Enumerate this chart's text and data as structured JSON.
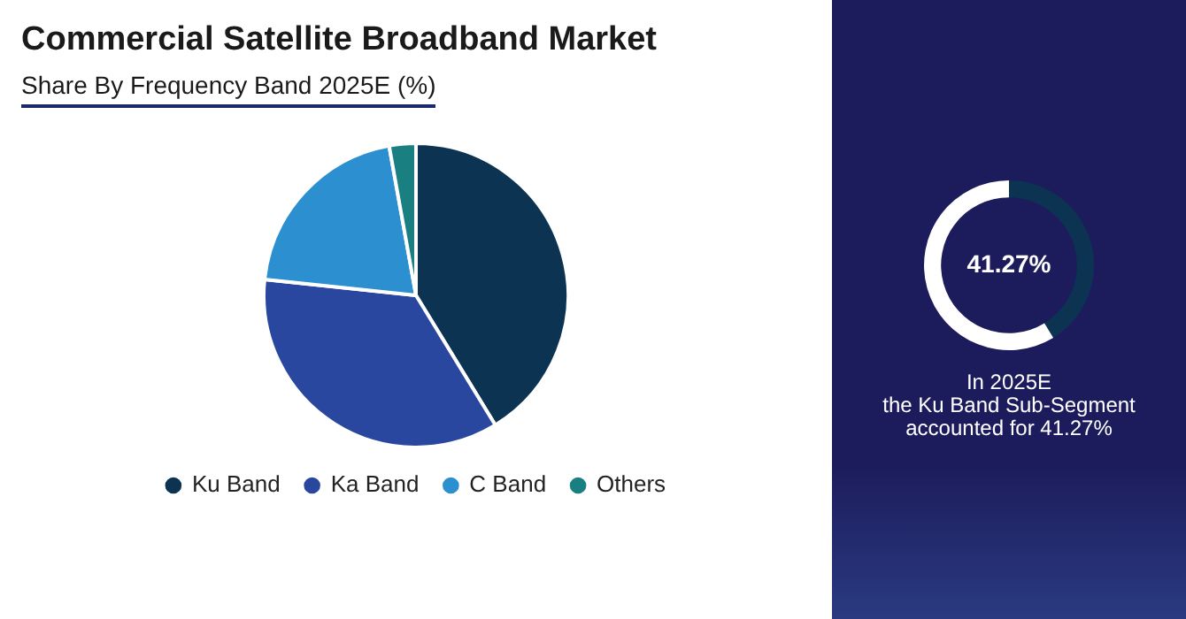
{
  "chart_data": [
    {
      "type": "pie",
      "title": "Commercial Satellite Broadband Market",
      "subtitle": "Share By Frequency Band 2025E (%)",
      "categories": [
        "Ku Band",
        "Ka Band",
        "C Band",
        "Others"
      ],
      "values": [
        41.27,
        35.4,
        20.5,
        2.83
      ],
      "colors": [
        "#0d3352",
        "#2a47a0",
        "#2b8fd0",
        "#1a7f80"
      ],
      "legend": "bottom"
    },
    {
      "type": "donut",
      "categories": [
        null,
        null
      ],
      "values": [
        41.27,
        58.73
      ],
      "colors": [
        "#0d3352",
        "#ffffff"
      ],
      "value_labels": [
        "41.27%",
        null
      ],
      "annotations": [
        "In 2025E\nthe Ku Band Sub-Segment\naccounted for 41.27%"
      ]
    }
  ]
}
